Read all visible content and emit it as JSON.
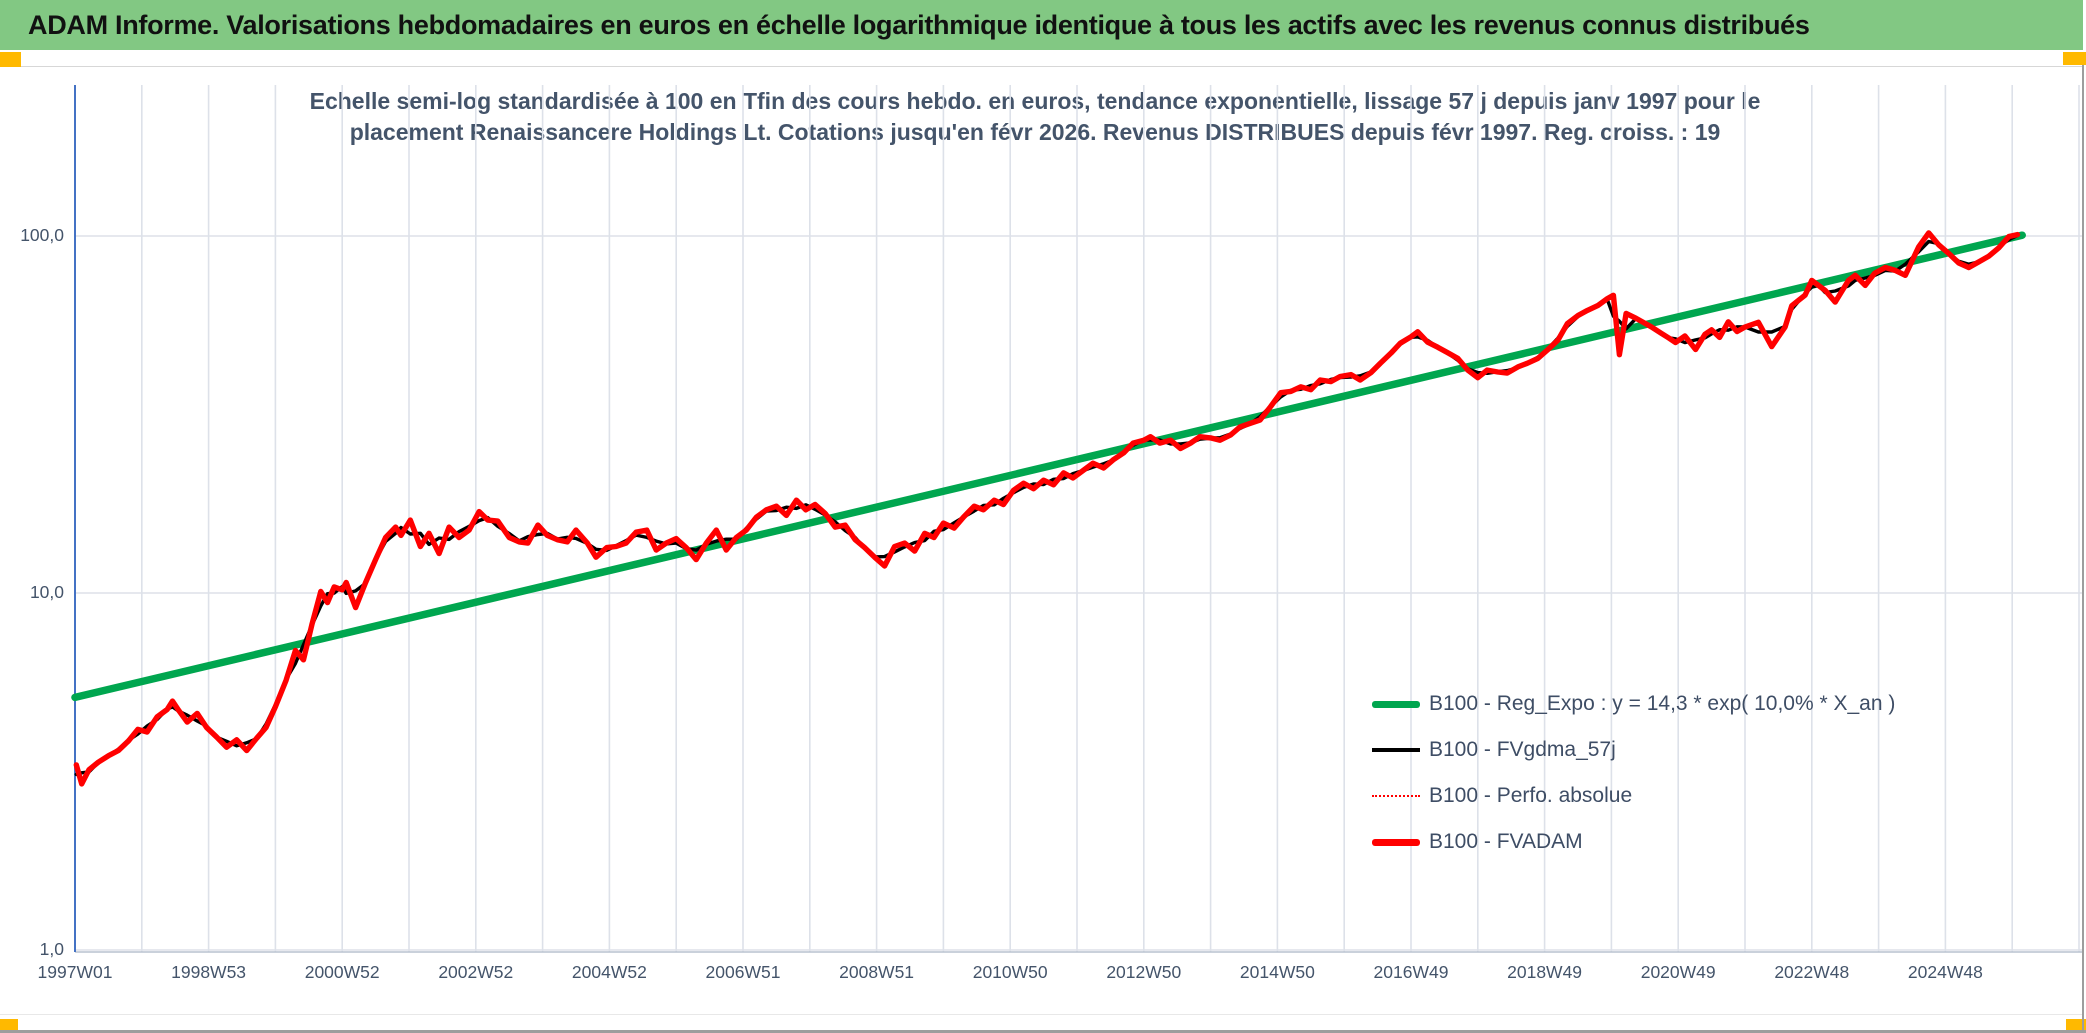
{
  "page": {
    "header": {
      "title": "ADAM Informe. Valorisations hebdomadaires en euros en échelle logarithmique identique à tous les actifs avec les revenus connus distribués",
      "bg_color": "#82C883",
      "accent_square_color": "#FFB900"
    }
  },
  "chart_data": {
    "type": "line",
    "title_lines": [
      "Echelle semi-log standardisée à 100 en Tfin des cours hebdo. en euros, tendance exponentielle, lissage 57 j depuis janv 1997 pour le",
      "placement Renaissancere Holdings Lt. Cotations jusqu'en févr 2026. Revenus DISTRIBUES depuis févr 1997. Reg. croiss. : 19"
    ],
    "y_scale": "log",
    "ylim": [
      1,
      265
    ],
    "x_range_years": [
      1997,
      2027.1
    ],
    "grid": true,
    "grid_color": "#dde1e9",
    "axis_line_color": "#4472C4",
    "baseline_color": "#b9c2cf",
    "text_color": "#44546A",
    "y_ticks": [
      {
        "label": "100,0",
        "value": 100
      },
      {
        "label": "10,0",
        "value": 10
      },
      {
        "label": "1,0",
        "value": 1
      }
    ],
    "x_ticks": [
      {
        "label": "1997W01",
        "year": 1997
      },
      {
        "label": "1998W53",
        "year": 1999
      },
      {
        "label": "2000W52",
        "year": 2001
      },
      {
        "label": "2002W52",
        "year": 2003
      },
      {
        "label": "2004W52",
        "year": 2005
      },
      {
        "label": "2006W51",
        "year": 2007
      },
      {
        "label": "2008W51",
        "year": 2009
      },
      {
        "label": "2010W50",
        "year": 2011
      },
      {
        "label": "2012W50",
        "year": 2013
      },
      {
        "label": "2014W50",
        "year": 2015
      },
      {
        "label": "2016W49",
        "year": 2017
      },
      {
        "label": "2018W49",
        "year": 2019
      },
      {
        "label": "2020W49",
        "year": 2021
      },
      {
        "label": "2022W48",
        "year": 2023
      },
      {
        "label": "2024W48",
        "year": 2025
      }
    ],
    "legend_position": "inside-right-bottom",
    "legend": [
      {
        "label": "B100 - Reg_Expo : y = 14,3 * exp( 10,0% *  X_an )",
        "color": "#00A64F",
        "style": "thick"
      },
      {
        "label": "B100 - FVgdma_57j",
        "color": "#000000",
        "style": "medium"
      },
      {
        "label": "B100 - Perfo. absolue",
        "color": "#FF0000",
        "style": "dotted"
      },
      {
        "label": "B100 - FVADAM",
        "color": "#FF0000",
        "style": "thick"
      }
    ],
    "series": [
      {
        "name": "B100 - Reg_Expo : y = 14,3 * exp( 10,0% *  X_an )",
        "color": "#00A64F",
        "width": 7.5,
        "points": [
          [
            1997.0,
            5.1
          ],
          [
            2026.15,
            100.5
          ]
        ]
      },
      {
        "name": "B100 - Perfo. absolue",
        "color": "#FF0000",
        "width": 1.6,
        "dash": "2 3",
        "points_ref": "fvadam_points"
      },
      {
        "name": "B100 - FVgdma_57j",
        "color": "#000000",
        "width": 3.4,
        "derived_ma_window": 3,
        "points_ref": "fvadam_points"
      },
      {
        "name": "B100 - FVADAM",
        "color": "#FF0000",
        "width": 5.4,
        "points_ref": "fvadam_points"
      }
    ],
    "fvadam_points": [
      [
        1997.02,
        3.3
      ],
      [
        1997.1,
        2.92
      ],
      [
        1997.21,
        3.2
      ],
      [
        1997.35,
        3.36
      ],
      [
        1997.5,
        3.5
      ],
      [
        1997.65,
        3.62
      ],
      [
        1997.8,
        3.85
      ],
      [
        1997.94,
        4.15
      ],
      [
        1998.08,
        4.08
      ],
      [
        1998.23,
        4.5
      ],
      [
        1998.38,
        4.72
      ],
      [
        1998.46,
        4.98
      ],
      [
        1998.55,
        4.7
      ],
      [
        1998.68,
        4.35
      ],
      [
        1998.83,
        4.6
      ],
      [
        1998.97,
        4.2
      ],
      [
        1999.12,
        3.95
      ],
      [
        1999.27,
        3.7
      ],
      [
        1999.42,
        3.88
      ],
      [
        1999.57,
        3.62
      ],
      [
        1999.72,
        3.92
      ],
      [
        1999.86,
        4.2
      ],
      [
        2000.0,
        4.8
      ],
      [
        2000.16,
        5.7
      ],
      [
        2000.3,
        6.9
      ],
      [
        2000.42,
        6.5
      ],
      [
        2000.55,
        8.2
      ],
      [
        2000.68,
        10.1
      ],
      [
        2000.78,
        9.4
      ],
      [
        2000.88,
        10.4
      ],
      [
        2001.0,
        10.2
      ],
      [
        2001.06,
        10.7
      ],
      [
        2001.2,
        9.1
      ],
      [
        2001.35,
        10.7
      ],
      [
        2001.5,
        12.4
      ],
      [
        2001.65,
        14.3
      ],
      [
        2001.8,
        15.3
      ],
      [
        2001.88,
        14.5
      ],
      [
        2002.02,
        16.0
      ],
      [
        2002.17,
        13.5
      ],
      [
        2002.3,
        14.7
      ],
      [
        2002.45,
        12.9
      ],
      [
        2002.6,
        15.3
      ],
      [
        2002.75,
        14.3
      ],
      [
        2002.9,
        15.0
      ],
      [
        2003.05,
        16.9
      ],
      [
        2003.18,
        16.0
      ],
      [
        2003.33,
        15.9
      ],
      [
        2003.5,
        14.3
      ],
      [
        2003.65,
        13.9
      ],
      [
        2003.78,
        13.8
      ],
      [
        2003.93,
        15.5
      ],
      [
        2004.07,
        14.5
      ],
      [
        2004.22,
        14.1
      ],
      [
        2004.37,
        13.9
      ],
      [
        2004.5,
        15.0
      ],
      [
        2004.67,
        13.8
      ],
      [
        2004.8,
        12.6
      ],
      [
        2004.96,
        13.4
      ],
      [
        2005.1,
        13.5
      ],
      [
        2005.25,
        13.8
      ],
      [
        2005.4,
        14.8
      ],
      [
        2005.56,
        15.0
      ],
      [
        2005.7,
        13.2
      ],
      [
        2005.85,
        13.8
      ],
      [
        2006.0,
        14.2
      ],
      [
        2006.15,
        13.4
      ],
      [
        2006.3,
        12.4
      ],
      [
        2006.45,
        13.8
      ],
      [
        2006.6,
        15.0
      ],
      [
        2006.75,
        13.2
      ],
      [
        2006.9,
        14.3
      ],
      [
        2007.05,
        15.0
      ],
      [
        2007.2,
        16.3
      ],
      [
        2007.35,
        17.1
      ],
      [
        2007.5,
        17.5
      ],
      [
        2007.65,
        16.5
      ],
      [
        2007.8,
        18.2
      ],
      [
        2007.94,
        17.1
      ],
      [
        2008.08,
        17.7
      ],
      [
        2008.23,
        16.7
      ],
      [
        2008.38,
        15.3
      ],
      [
        2008.53,
        15.5
      ],
      [
        2008.68,
        14.1
      ],
      [
        2008.82,
        13.4
      ],
      [
        2008.97,
        12.6
      ],
      [
        2009.12,
        11.9
      ],
      [
        2009.27,
        13.5
      ],
      [
        2009.42,
        13.8
      ],
      [
        2009.57,
        13.1
      ],
      [
        2009.72,
        14.7
      ],
      [
        2009.86,
        14.3
      ],
      [
        2010.0,
        15.7
      ],
      [
        2010.16,
        15.2
      ],
      [
        2010.3,
        16.3
      ],
      [
        2010.46,
        17.5
      ],
      [
        2010.6,
        17.1
      ],
      [
        2010.76,
        18.2
      ],
      [
        2010.9,
        17.7
      ],
      [
        2011.05,
        19.4
      ],
      [
        2011.2,
        20.3
      ],
      [
        2011.35,
        19.6
      ],
      [
        2011.5,
        20.7
      ],
      [
        2011.65,
        20.1
      ],
      [
        2011.8,
        21.7
      ],
      [
        2011.94,
        21.0
      ],
      [
        2012.1,
        22.1
      ],
      [
        2012.24,
        23.1
      ],
      [
        2012.4,
        22.4
      ],
      [
        2012.54,
        23.6
      ],
      [
        2012.7,
        24.7
      ],
      [
        2012.84,
        26.3
      ],
      [
        2013.0,
        26.8
      ],
      [
        2013.1,
        27.4
      ],
      [
        2013.24,
        26.3
      ],
      [
        2013.4,
        26.8
      ],
      [
        2013.55,
        25.4
      ],
      [
        2013.7,
        26.3
      ],
      [
        2013.84,
        27.4
      ],
      [
        2014.0,
        27.2
      ],
      [
        2014.14,
        26.8
      ],
      [
        2014.3,
        27.7
      ],
      [
        2014.44,
        29.2
      ],
      [
        2014.6,
        29.9
      ],
      [
        2014.74,
        30.5
      ],
      [
        2014.9,
        33.3
      ],
      [
        2015.05,
        36.4
      ],
      [
        2015.2,
        36.7
      ],
      [
        2015.35,
        37.8
      ],
      [
        2015.5,
        37.1
      ],
      [
        2015.64,
        39.5
      ],
      [
        2015.8,
        39.1
      ],
      [
        2015.94,
        40.4
      ],
      [
        2016.1,
        40.9
      ],
      [
        2016.24,
        39.5
      ],
      [
        2016.4,
        41.4
      ],
      [
        2016.54,
        44.0
      ],
      [
        2016.7,
        47.0
      ],
      [
        2016.84,
        50.1
      ],
      [
        2017.0,
        52.2
      ],
      [
        2017.1,
        53.9
      ],
      [
        2017.25,
        50.4
      ],
      [
        2017.4,
        48.8
      ],
      [
        2017.54,
        47.2
      ],
      [
        2017.7,
        45.4
      ],
      [
        2017.85,
        42.1
      ],
      [
        2018.0,
        40.1
      ],
      [
        2018.14,
        42.1
      ],
      [
        2018.3,
        41.6
      ],
      [
        2018.44,
        41.3
      ],
      [
        2018.6,
        43.0
      ],
      [
        2018.74,
        44.0
      ],
      [
        2018.9,
        45.4
      ],
      [
        2019.04,
        47.9
      ],
      [
        2019.2,
        51.1
      ],
      [
        2019.34,
        56.8
      ],
      [
        2019.5,
        59.9
      ],
      [
        2019.64,
        61.9
      ],
      [
        2019.8,
        63.9
      ],
      [
        2019.94,
        66.8
      ],
      [
        2020.03,
        68.2
      ],
      [
        2020.12,
        46.5
      ],
      [
        2020.22,
        60.7
      ],
      [
        2020.37,
        58.8
      ],
      [
        2020.5,
        57.0
      ],
      [
        2020.6,
        55.6
      ],
      [
        2020.74,
        53.5
      ],
      [
        2020.86,
        51.8
      ],
      [
        2020.96,
        50.3
      ],
      [
        2021.1,
        52.5
      ],
      [
        2021.26,
        48.1
      ],
      [
        2021.4,
        53.0
      ],
      [
        2021.5,
        54.6
      ],
      [
        2021.62,
        52.0
      ],
      [
        2021.75,
        57.5
      ],
      [
        2021.88,
        54.0
      ],
      [
        2022.0,
        55.6
      ],
      [
        2022.2,
        57.3
      ],
      [
        2022.4,
        49.0
      ],
      [
        2022.6,
        55.6
      ],
      [
        2022.7,
        63.8
      ],
      [
        2022.9,
        68.3
      ],
      [
        2023.0,
        75.1
      ],
      [
        2023.1,
        72.7
      ],
      [
        2023.2,
        70.4
      ],
      [
        2023.35,
        65.3
      ],
      [
        2023.55,
        75.1
      ],
      [
        2023.65,
        77.6
      ],
      [
        2023.8,
        72.7
      ],
      [
        2023.94,
        78.6
      ],
      [
        2024.1,
        81.6
      ],
      [
        2024.25,
        80.1
      ],
      [
        2024.4,
        77.6
      ],
      [
        2024.6,
        93.3
      ],
      [
        2024.75,
        102.0
      ],
      [
        2024.9,
        94.5
      ],
      [
        2025.05,
        89.4
      ],
      [
        2025.2,
        84.0
      ],
      [
        2025.35,
        81.6
      ],
      [
        2025.5,
        84.6
      ],
      [
        2025.65,
        87.8
      ],
      [
        2025.8,
        92.7
      ],
      [
        2025.95,
        99.7
      ],
      [
        2026.08,
        100.9
      ]
    ]
  }
}
